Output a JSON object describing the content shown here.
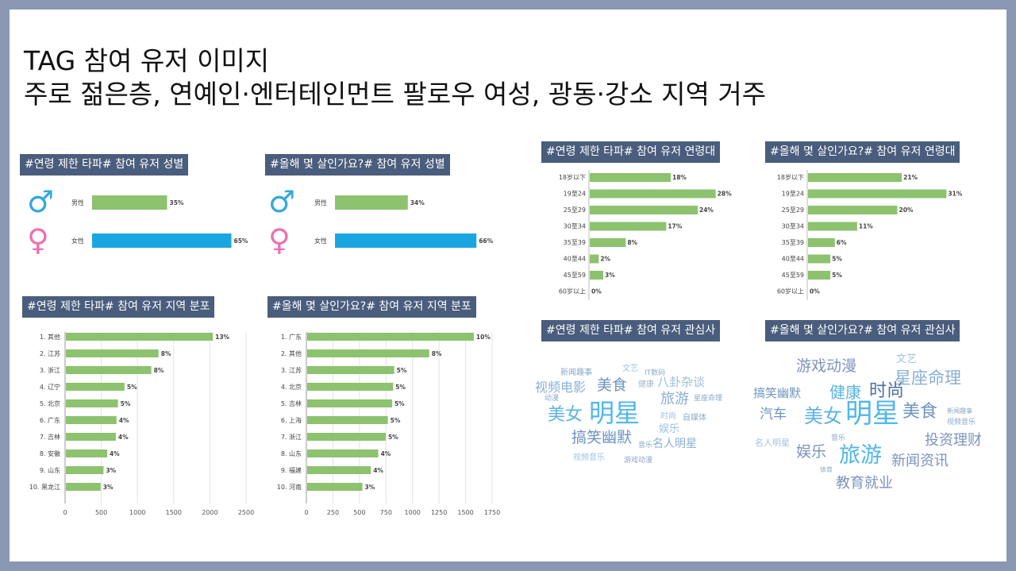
{
  "title_line1": "TAG 참여 유저 이미지",
  "title_line2": "주로 젊은층, 연예인·엔터테인먼트 팔로우 여성, 광동·강소 지역 거주",
  "headers": {
    "gender_a": "#연령 제한 타파# 참여 유저 성별",
    "gender_b": "#올해 몇 살인가요?# 참여 유저 성별",
    "region_a": "#연령 제한 타파# 참여 유저 지역 분포",
    "region_b": "#올해 몇 살인가요?# 참여 유저 지역 분포",
    "age_a": "#연령 제한 타파# 참여 유저 연령대",
    "age_b": "#올해 몇 살인가요?# 참여 유저 연령대",
    "interest_a": "#연령 제한 타파# 참여 유저 관심사",
    "interest_b": "#올해 몇 살인가요?# 참여 유저 관심사"
  },
  "icons": {
    "male": "male-symbol-icon",
    "female": "female-symbol-icon"
  },
  "colors": {
    "bar": "#8dc26f",
    "female_bar": "#1aa7e1",
    "male_icon": "#36a8de",
    "female_icon": "#ef6fb0",
    "header_bg": "#4a5d7c"
  },
  "chart_data": [
    {
      "id": "gender_a",
      "type": "bar",
      "orientation": "horizontal",
      "categories": [
        "男性",
        "女性"
      ],
      "values": [
        35,
        65
      ],
      "labels": [
        "35%",
        "65%"
      ],
      "unit": "%"
    },
    {
      "id": "gender_b",
      "type": "bar",
      "orientation": "horizontal",
      "categories": [
        "男性",
        "女性"
      ],
      "values": [
        34,
        66
      ],
      "labels": [
        "34%",
        "66%"
      ],
      "unit": "%"
    },
    {
      "id": "age_a",
      "type": "bar",
      "orientation": "horizontal",
      "categories": [
        "18岁以下",
        "19至24",
        "25至29",
        "30至34",
        "35至39",
        "40至44",
        "45至59",
        "60岁以上"
      ],
      "values": [
        18,
        28,
        24,
        17,
        8,
        2,
        3,
        0
      ],
      "labels": [
        "18%",
        "28%",
        "24%",
        "17%",
        "8%",
        "2%",
        "3%",
        "0%"
      ],
      "max": 30
    },
    {
      "id": "age_b",
      "type": "bar",
      "orientation": "horizontal",
      "categories": [
        "18岁以下",
        "19至24",
        "25至29",
        "30至34",
        "35至39",
        "40至44",
        "45至59",
        "60岁以上"
      ],
      "values": [
        21,
        31,
        20,
        11,
        6,
        5,
        5,
        0
      ],
      "labels": [
        "21%",
        "31%",
        "20%",
        "11%",
        "6%",
        "5%",
        "5%",
        "0%"
      ],
      "max": 32
    },
    {
      "id": "region_a",
      "type": "bar",
      "orientation": "horizontal",
      "categories": [
        "1. 其他",
        "2. 江苏",
        "3. 浙江",
        "4. 辽宁",
        "5. 北京",
        "6. 广东",
        "7. 吉林",
        "8. 安徽",
        "9. 山东",
        "10. 黑龙江"
      ],
      "values": [
        2030,
        1280,
        1180,
        810,
        720,
        700,
        690,
        570,
        520,
        480
      ],
      "labels": [
        "13%",
        "8%",
        "8%",
        "5%",
        "5%",
        "4%",
        "4%",
        "4%",
        "3%",
        "3%"
      ],
      "xlim": [
        0,
        2500
      ],
      "xticks": [
        "0",
        "500",
        "1000",
        "1500",
        "2000",
        "2500"
      ]
    },
    {
      "id": "region_b",
      "type": "bar",
      "orientation": "horizontal",
      "categories": [
        "1. 广东",
        "2. 其他",
        "3. 江苏",
        "4. 北京",
        "5. 吉林",
        "6. 上海",
        "7. 浙江",
        "8. 山东",
        "9. 福建",
        "10. 河南"
      ],
      "values": [
        1570,
        1150,
        820,
        810,
        800,
        760,
        740,
        670,
        600,
        520
      ],
      "labels": [
        "10%",
        "8%",
        "5%",
        "5%",
        "5%",
        "5%",
        "5%",
        "4%",
        "4%",
        "3%"
      ],
      "xlim": [
        0,
        1750
      ],
      "xticks": [
        "0",
        "250",
        "500",
        "750",
        "1000",
        "1250",
        "1500",
        "1750"
      ]
    }
  ],
  "wordcloud_a": [
    "新闻趣事",
    "文艺",
    "IT数码",
    "视频电影",
    "美食",
    "健康",
    "八卦杂谈",
    "动漫",
    "旅游",
    "星座命理",
    "美女",
    "明星",
    "时尚",
    "自媒体",
    "娱乐",
    "搞笑幽默",
    "音乐",
    "名人明星",
    "视频音乐",
    "游戏动漫"
  ],
  "wordcloud_b": [
    "游戏动漫",
    "文艺",
    "星座命理",
    "搞笑幽默",
    "健康",
    "时尚",
    "汽车",
    "美女",
    "明星",
    "美食",
    "新闻趣事",
    "视频音乐",
    "名人明星",
    "音乐",
    "投资理财",
    "娱乐",
    "旅游",
    "新闻资讯",
    "体育",
    "教育就业"
  ]
}
